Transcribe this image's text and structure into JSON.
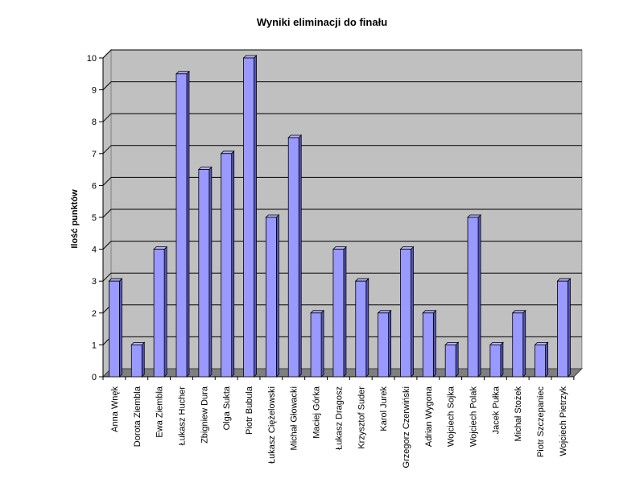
{
  "chart_data": {
    "type": "bar",
    "title": "Wyniki eliminacji do finału",
    "xlabel": "",
    "ylabel": "Ilość punktów",
    "ylim": [
      0,
      10
    ],
    "yticks": [
      "0",
      "1",
      "2",
      "3",
      "4",
      "5",
      "6",
      "7",
      "8",
      "9",
      "10"
    ],
    "grid": true,
    "legend": "none",
    "categories": [
      "Anna Wnęk",
      "Dorota Ziembla",
      "Ewa Ziembla",
      "Łukasz Hucher",
      "Zbigniew Dura",
      "Olga Sukta",
      "Piotr Bubula",
      "Łukasz Ciężelowski",
      "Michał Głowacki",
      "Maciej Górka",
      "Łukasz Dragosz",
      "Krzysztof Suder",
      "Karol Jurek",
      "Grzegorz Czerwiński",
      "Adrian Wygona",
      "Wojciech Sojka",
      "Wojciech Polak",
      "Jacek Pułka",
      "Michał Stożek",
      "Piotr Szczepaniec",
      "Wojciech Pietrzyk"
    ],
    "values": [
      3,
      1,
      4,
      9.5,
      6.5,
      7,
      10,
      5,
      7.5,
      2,
      4,
      3,
      2,
      4,
      2,
      1,
      5,
      1,
      2,
      1,
      3
    ],
    "colors": {
      "bar_front": "#9999ff",
      "bar_top": "#b3b3ff",
      "bar_side": "#5555bb",
      "wall": "#c0c0c0",
      "floor": "#7f7f7f",
      "grid": "#000000"
    }
  }
}
